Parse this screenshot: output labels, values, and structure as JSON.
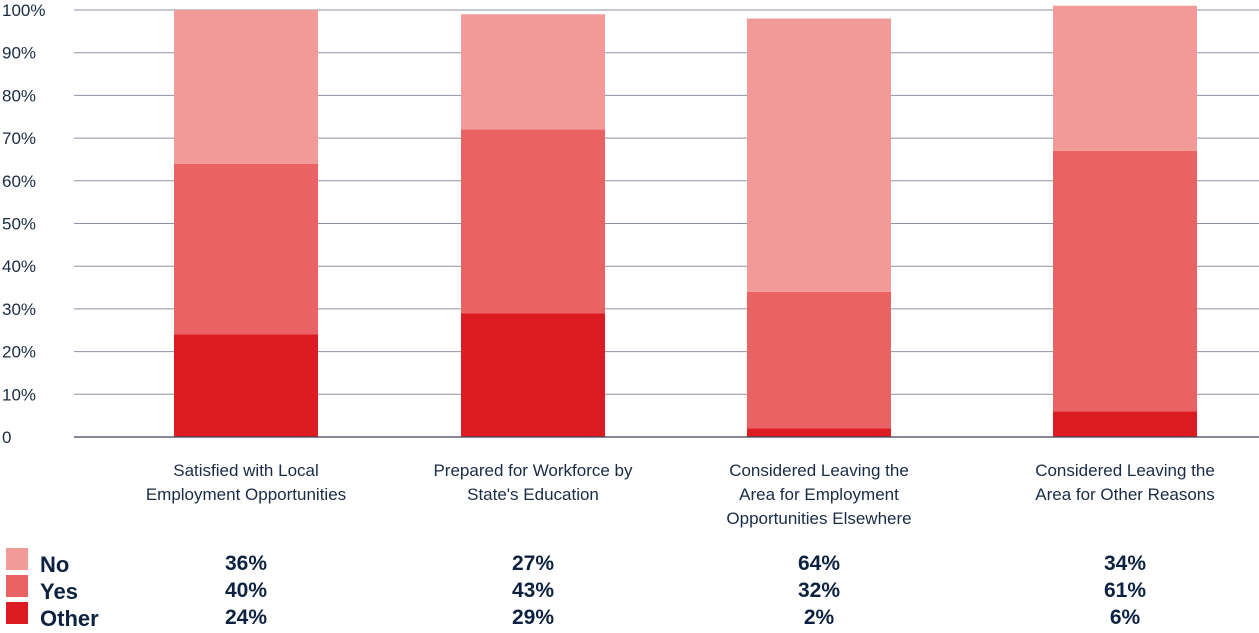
{
  "chart_data": {
    "type": "bar",
    "stacked": true,
    "categories": [
      [
        "Satisfied with Local",
        "Employment Opportunities"
      ],
      [
        "Prepared for Workforce by",
        "State's Education"
      ],
      [
        "Considered Leaving the",
        "Area for Employment",
        "Opportunities Elsewhere"
      ],
      [
        "Considered Leaving the",
        "Area for Other Reasons"
      ]
    ],
    "series": [
      {
        "name": "Other",
        "color": "#dc1c22",
        "values": [
          24,
          29,
          2,
          6
        ]
      },
      {
        "name": "Yes",
        "color": "#ea6264",
        "values": [
          40,
          43,
          32,
          61
        ]
      },
      {
        "name": "No",
        "color": "#f29a97",
        "values": [
          36,
          27,
          64,
          34
        ]
      }
    ],
    "table": {
      "No": [
        "36%",
        "27%",
        "64%",
        "34%"
      ],
      "Yes": [
        "40%",
        "43%",
        "32%",
        "61%"
      ],
      "Other": [
        "24%",
        "29%",
        "2%",
        "6%"
      ]
    },
    "legend_order": [
      "No",
      "Yes",
      "Other"
    ],
    "yticks": [
      "0",
      "10%",
      "20%",
      "30%",
      "40%",
      "50%",
      "60%",
      "70%",
      "80%",
      "90%",
      "100%"
    ],
    "ylim": [
      0,
      100
    ],
    "grid": true,
    "legend_position": "bottom-left"
  }
}
